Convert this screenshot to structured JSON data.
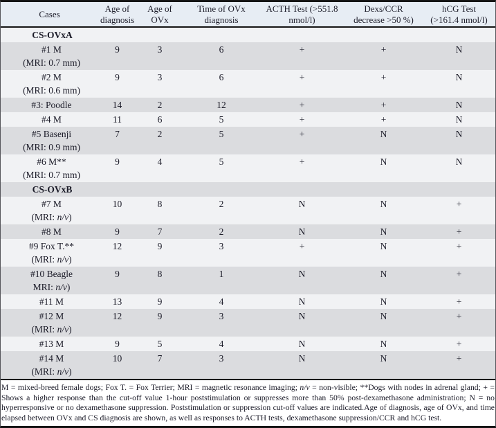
{
  "table": {
    "columns": [
      {
        "line1": "Cases",
        "line2": ""
      },
      {
        "line1": "Age of",
        "line2": "diagnosis"
      },
      {
        "line1": "Age of",
        "line2": "OVx"
      },
      {
        "line1": "Time of OVx",
        "line2": "diagnosis"
      },
      {
        "line1": "ACTH Test (>551.8",
        "line2": "nmol/l)"
      },
      {
        "line1": "Dexs/CCR",
        "line2": "decrease >50 %)"
      },
      {
        "line1": "hCG Test",
        "line2": "(>161.4 nmol/l)"
      }
    ],
    "rows": [
      {
        "type": "group",
        "label": "CS-OVxA"
      },
      {
        "type": "case",
        "name": "#1 M",
        "sub": "(MRI: 0.7 mm)",
        "values": [
          "9",
          "3",
          "6",
          "+",
          "+",
          "N"
        ]
      },
      {
        "type": "case",
        "name": "#2 M",
        "sub": "(MRI: 0.6 mm)",
        "values": [
          "9",
          "3",
          "6",
          "+",
          "+",
          "N"
        ]
      },
      {
        "type": "case",
        "name": "#3: Poodle",
        "sub": "",
        "values": [
          "14",
          "2",
          "12",
          "+",
          "+",
          "N"
        ]
      },
      {
        "type": "case",
        "name": "#4 M",
        "sub": "",
        "values": [
          "11",
          "6",
          "5",
          "+",
          "+",
          "N"
        ]
      },
      {
        "type": "case",
        "name": "#5 Basenji",
        "sub": "(MRI: 0.9 mm)",
        "values": [
          "7",
          "2",
          "5",
          "+",
          "N",
          "N"
        ]
      },
      {
        "type": "case",
        "name": "#6 M**",
        "sub": "(MRI: 0.7 mm)",
        "values": [
          "9",
          "4",
          "5",
          "+",
          "N",
          "N"
        ]
      },
      {
        "type": "group",
        "label": "CS-OVxB"
      },
      {
        "type": "case",
        "name": "#7 M",
        "sub": "(MRI: n/v)",
        "values": [
          "10",
          "8",
          "2",
          "N",
          "N",
          "+"
        ]
      },
      {
        "type": "case",
        "name": "#8 M",
        "sub": "",
        "values": [
          "9",
          "7",
          "2",
          "N",
          "N",
          "+"
        ]
      },
      {
        "type": "case",
        "name": "#9 Fox T.**",
        "sub": "(MRI: n/v)",
        "values": [
          "12",
          "9",
          "3",
          "+",
          "N",
          "+"
        ]
      },
      {
        "type": "case",
        "name": "#10 Beagle",
        "sub": "MRI: n/v)",
        "values": [
          "9",
          "8",
          "1",
          "N",
          "N",
          "+"
        ]
      },
      {
        "type": "case",
        "name": "#11 M",
        "sub": "",
        "values": [
          "13",
          "9",
          "4",
          "N",
          "N",
          "+"
        ]
      },
      {
        "type": "case",
        "name": "#12 M",
        "sub": "(MRI: n/v)",
        "values": [
          "12",
          "9",
          "3",
          "N",
          "N",
          "+"
        ]
      },
      {
        "type": "case",
        "name": "#13 M",
        "sub": "",
        "values": [
          "9",
          "5",
          "4",
          "N",
          "N",
          "+"
        ]
      },
      {
        "type": "case",
        "name": "#14 M",
        "sub": "(MRI: n/v)",
        "values": [
          "10",
          "7",
          "3",
          "N",
          "N",
          "+"
        ]
      }
    ]
  },
  "footnote": "M = mixed-breed female dogs; Fox T. = Fox Terrier; MRI = magnetic resonance imaging; n/v = non-visible; **Dogs with nodes in adrenal gland; + = Shows a higher response than the cut-off value 1-hour poststimulation or suppresses more than 50% post-dexamethasone administration; N = no hyperresponsive or no dexamethasone suppression. Poststimulation or suppression cut-off values are indicated.Age of diagnosis, age of OVx, and time elapsed between OVx and CS diagnosis are shown, as well as responses to ACTH tests, dexamethasone suppression/CCR and hCG test.",
  "colors": {
    "header_bg": "#e7edf4",
    "stripe_light": "#f1f2f4",
    "stripe_gray": "#dbdcdf",
    "rule": "#151515",
    "text": "#1b1b28"
  }
}
